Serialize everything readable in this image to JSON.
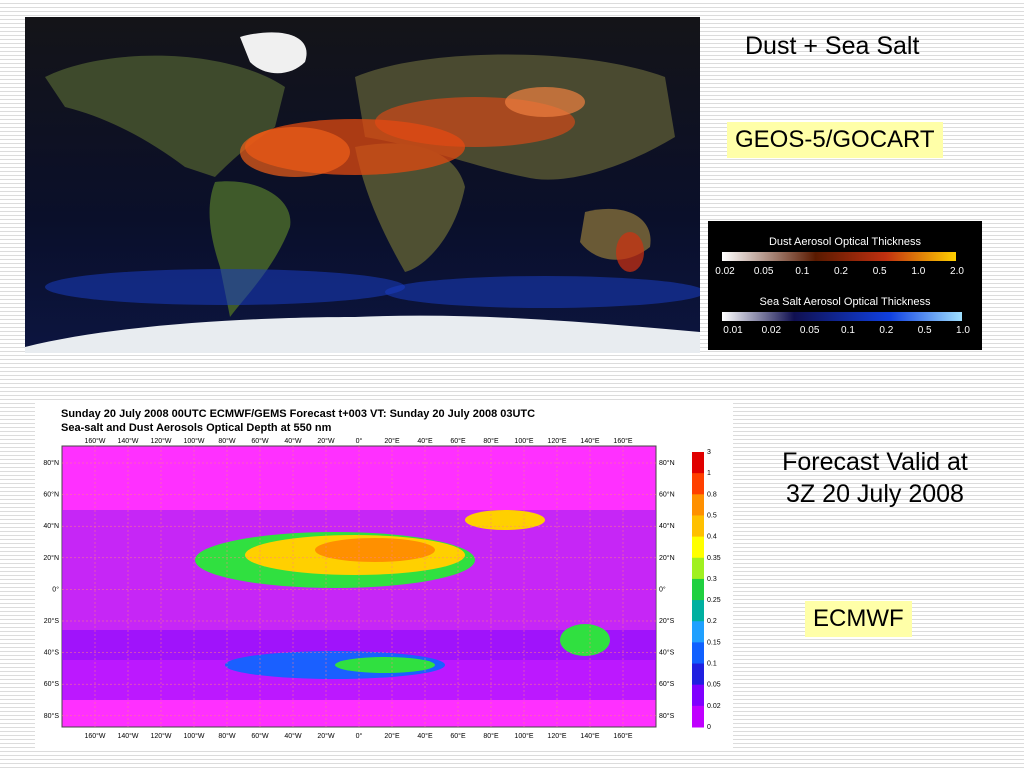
{
  "top_panel": {
    "title": "Dust + Sea Salt",
    "model": "GEOS-5/GOCART",
    "legend": {
      "dust_title": "Dust Aerosol Optical Thickness",
      "dust_ticks": [
        "0.02",
        "0.05",
        "0.1",
        "0.2",
        "0.5",
        "1.0",
        "2.0"
      ],
      "salt_title": "Sea Salt Aerosol Optical Thickness",
      "salt_ticks": [
        "0.01",
        "0.02",
        "0.05",
        "0.1",
        "0.2",
        "0.5",
        "1.0"
      ]
    }
  },
  "bottom_panel": {
    "caption": "Forecast Valid at 3Z 20 July 2008",
    "model": "ECMWF",
    "map_title": [
      "Sunday 20 July 2008 00UTC ECMWF/GEMS Forecast t+003 VT: Sunday 20 July 2008 03UTC",
      "Sea-salt and Dust Aerosols Optical Depth at 550 nm"
    ],
    "longitudes": [
      "160°W",
      "140°W",
      "120°W",
      "100°W",
      "80°W",
      "60°W",
      "40°W",
      "20°W",
      "0°",
      "20°E",
      "40°E",
      "60°E",
      "80°E",
      "100°E",
      "120°E",
      "140°E",
      "160°E"
    ],
    "latitudes": [
      "80°N",
      "60°N",
      "40°N",
      "20°N",
      "0°",
      "20°S",
      "40°S",
      "60°S",
      "80°S"
    ],
    "colorbar_ticks": [
      "3",
      "1",
      "0.8",
      "0.5",
      "0.4",
      "0.35",
      "0.3",
      "0.25",
      "0.2",
      "0.15",
      "0.1",
      "0.05",
      "0.02",
      "0"
    ]
  }
}
